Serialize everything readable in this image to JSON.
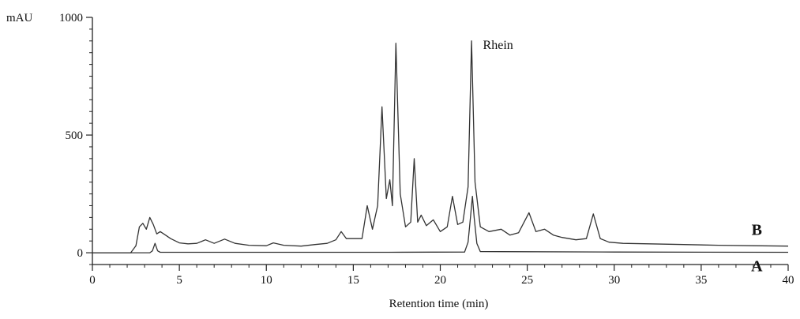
{
  "chart_data": {
    "type": "line",
    "title": "",
    "xlabel": "Retention time (min)",
    "ylabel": "mAU",
    "xlim": [
      0,
      40
    ],
    "ylim": [
      -50,
      1000
    ],
    "x_ticks": [
      0,
      5,
      10,
      15,
      20,
      25,
      30,
      35,
      40
    ],
    "x_tick_labels": [
      "0",
      "5",
      "10",
      "15",
      "20",
      "25",
      "30",
      "35",
      "40"
    ],
    "y_ticks": [
      0,
      500,
      1000
    ],
    "y_tick_labels": [
      "0",
      "500",
      "1000"
    ],
    "grid": false,
    "legend": "none",
    "series": [
      {
        "name": "A",
        "color": "#333333",
        "x": [
          0,
          3.3,
          3.45,
          3.6,
          3.75,
          3.9,
          17.0,
          21.4,
          21.6,
          21.75,
          21.85,
          21.95,
          22.1,
          22.3,
          30,
          40
        ],
        "y": [
          0,
          0,
          8,
          40,
          8,
          2,
          2,
          3,
          45,
          160,
          240,
          150,
          40,
          5,
          3,
          2
        ]
      },
      {
        "name": "B",
        "color": "#333333",
        "x": [
          0,
          2.2,
          2.5,
          2.7,
          2.9,
          3.1,
          3.3,
          3.5,
          3.7,
          3.9,
          4.2,
          4.5,
          5.0,
          5.5,
          6.0,
          6.5,
          7.0,
          7.6,
          8.2,
          9.0,
          10.0,
          10.4,
          11.0,
          12.0,
          12.8,
          13.5,
          14.0,
          14.3,
          14.6,
          15.0,
          15.5,
          15.8,
          16.1,
          16.4,
          16.65,
          16.9,
          17.1,
          17.25,
          17.45,
          17.7,
          18.0,
          18.3,
          18.5,
          18.7,
          18.9,
          19.2,
          19.6,
          20.0,
          20.4,
          20.7,
          21.0,
          21.3,
          21.6,
          21.8,
          22.0,
          22.3,
          22.8,
          23.5,
          24.0,
          24.5,
          25.1,
          25.5,
          26.0,
          26.5,
          27.0,
          27.8,
          28.4,
          28.8,
          29.2,
          29.7,
          30.5,
          32.0,
          34.0,
          36.0,
          38.0,
          40.0
        ],
        "y": [
          0,
          0,
          30,
          110,
          125,
          100,
          150,
          120,
          80,
          90,
          75,
          60,
          42,
          38,
          40,
          55,
          40,
          58,
          40,
          32,
          30,
          42,
          32,
          28,
          35,
          40,
          55,
          90,
          60,
          60,
          60,
          200,
          100,
          200,
          620,
          230,
          310,
          200,
          890,
          250,
          110,
          130,
          400,
          130,
          160,
          115,
          140,
          90,
          110,
          240,
          120,
          130,
          280,
          900,
          300,
          110,
          90,
          100,
          75,
          85,
          170,
          90,
          100,
          75,
          65,
          55,
          60,
          165,
          60,
          45,
          40,
          38,
          35,
          32,
          30,
          28
        ]
      }
    ],
    "annotations": [
      {
        "text": "Rhein",
        "x": 22.0,
        "y": 900
      }
    ]
  }
}
